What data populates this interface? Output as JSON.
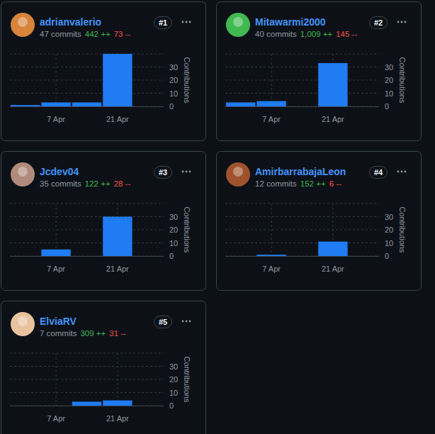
{
  "chart_data": [
    {
      "type": "bar",
      "title": "adrianvalerio",
      "commits": "47 commits",
      "additions": "442 ++",
      "deletions": "73 --",
      "rank": "#1",
      "ylabel": "Contributions",
      "categories": [
        null,
        "7 Apr",
        null,
        "21 Apr",
        null
      ],
      "values": [
        1,
        3,
        3,
        40,
        0
      ],
      "color": "#1f7cf2",
      "ylim": [
        0,
        40
      ],
      "yticks": [
        0,
        10,
        20,
        30
      ],
      "grid": true
    },
    {
      "type": "bar",
      "title": "Mitawarmi2000",
      "commits": "40 commits",
      "additions": "1,009 ++",
      "deletions": "145 --",
      "rank": "#2",
      "ylabel": "Contributions",
      "categories": [
        null,
        "7 Apr",
        null,
        "21 Apr",
        null
      ],
      "values": [
        3,
        4,
        0,
        33,
        0
      ],
      "color": "#1f7cf2",
      "ylim": [
        0,
        40
      ],
      "yticks": [
        0,
        10,
        20,
        30
      ],
      "grid": true
    },
    {
      "type": "bar",
      "title": "Jcdev04",
      "commits": "35 commits",
      "additions": "122 ++",
      "deletions": "28 --",
      "rank": "#3",
      "ylabel": "Contributions",
      "categories": [
        null,
        "7 Apr",
        null,
        "21 Apr",
        null
      ],
      "values": [
        0,
        5,
        0,
        30,
        0
      ],
      "color": "#1f7cf2",
      "ylim": [
        0,
        40
      ],
      "yticks": [
        0,
        10,
        20,
        30
      ],
      "grid": true
    },
    {
      "type": "bar",
      "title": "AmirbarrabajaLeon",
      "commits": "12 commits",
      "additions": "152 ++",
      "deletions": "6 --",
      "rank": "#4",
      "ylabel": "Contributions",
      "categories": [
        null,
        "7 Apr",
        null,
        "21 Apr",
        null
      ],
      "values": [
        0,
        1,
        0,
        11,
        0
      ],
      "color": "#1f7cf2",
      "ylim": [
        0,
        40
      ],
      "yticks": [
        0,
        10,
        20,
        30
      ],
      "grid": true
    },
    {
      "type": "bar",
      "title": "ElviaRV",
      "commits": "7 commits",
      "additions": "309 ++",
      "deletions": "31 --",
      "rank": "#5",
      "ylabel": "Contributions",
      "categories": [
        null,
        "7 Apr",
        null,
        "21 Apr",
        null
      ],
      "values": [
        0,
        0,
        3,
        4,
        0
      ],
      "color": "#1f7cf2",
      "ylim": [
        0,
        40
      ],
      "yticks": [
        0,
        10,
        20,
        30
      ],
      "grid": true
    }
  ]
}
